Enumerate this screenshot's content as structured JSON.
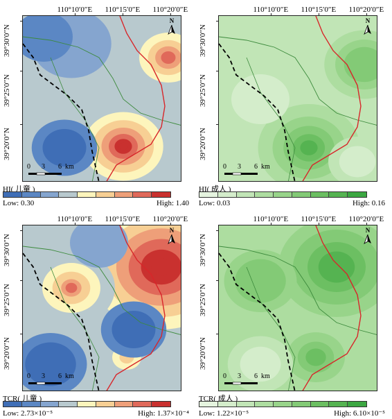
{
  "coordinates": {
    "lon_labels": [
      "110°10′0″E",
      "110°15′0″E",
      "110°20′0″E"
    ],
    "lat_labels": [
      "39°30′0″N",
      "39°25′0″N",
      "39°20′0″N"
    ]
  },
  "north_arrow": {
    "label": "N",
    "icon": "north-arrow-icon"
  },
  "scale_bar": {
    "ticks": [
      "0",
      "3",
      "6"
    ],
    "unit": "km"
  },
  "panels": [
    {
      "id": "hi-child",
      "legend_title": "HI( 儿童 )",
      "low_label": "Low: 0.30",
      "high_label": "High: 1.40",
      "palette": [
        "#3f6eb6",
        "#5b87c4",
        "#85a5cf",
        "#b8c9ce",
        "#fdf5bc",
        "#f7cf94",
        "#ee9f79",
        "#e0695a",
        "#c9312f"
      ]
    },
    {
      "id": "hi-adult",
      "legend_title": "HI( 成人 )",
      "low_label": "Low: 0.03",
      "high_label": "High: 0.16",
      "palette": [
        "#e5f4df",
        "#d4edcb",
        "#c1e5b6",
        "#addda0",
        "#98d48a",
        "#83ca76",
        "#6cbf62",
        "#55b351",
        "#3ca742"
      ]
    },
    {
      "id": "tcr-child",
      "legend_title": "TCR( 儿童 )",
      "low_label": "Low: 2.73×10⁻⁵",
      "high_label": "High: 1.37×10⁻⁴",
      "palette": [
        "#3f6eb6",
        "#5b87c4",
        "#85a5cf",
        "#b8c9ce",
        "#fdf5bc",
        "#f7cf94",
        "#ee9f79",
        "#e0695a",
        "#c9312f"
      ]
    },
    {
      "id": "tcr-adult",
      "legend_title": "TCR( 成人 )",
      "low_label": "Low: 1.22×10⁻⁵",
      "high_label": "High: 6.10×10⁻⁵",
      "palette": [
        "#e5f4df",
        "#d4edcb",
        "#c1e5b6",
        "#addda0",
        "#98d48a",
        "#83ca76",
        "#6cbf62",
        "#55b351",
        "#3ca742"
      ]
    }
  ]
}
